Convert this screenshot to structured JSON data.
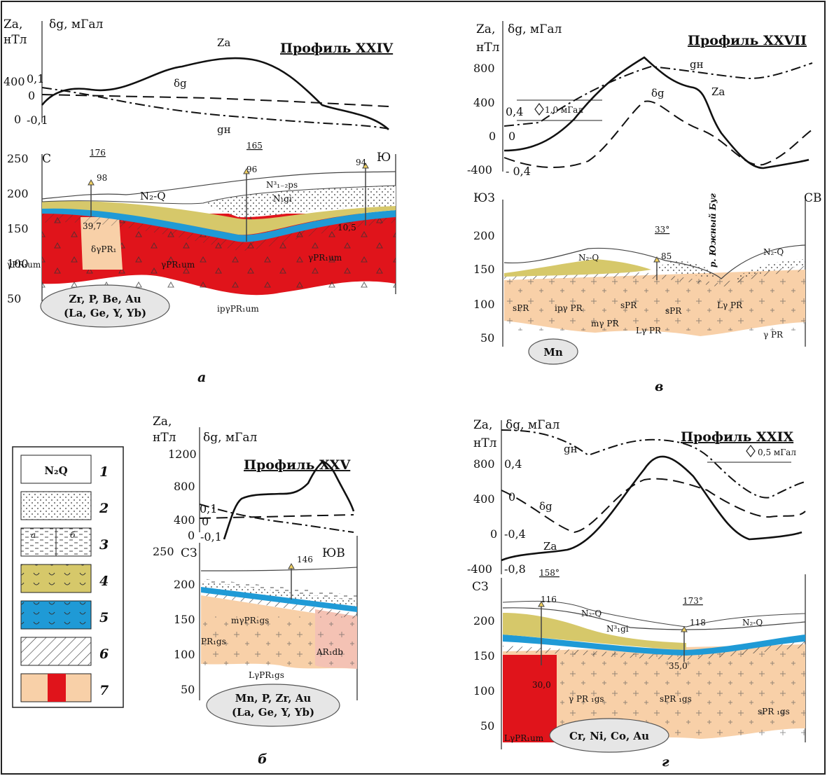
{
  "panels": [
    {
      "id": "a",
      "title": "Профиль XXIV",
      "za_label": [
        "Za,",
        "нТл"
      ],
      "dg_label": "δg, мГал",
      "za_ticks": [
        "400",
        "0"
      ],
      "dg_ticks": [
        "0,1",
        "0",
        "-0,1"
      ],
      "curves": [
        "Za",
        "δg",
        "gн"
      ],
      "depth_ticks": [
        "250",
        "200",
        "150",
        "100",
        "50"
      ],
      "dir_left": "С",
      "dir_right": "Ю",
      "well_marks": [
        "176",
        "165"
      ],
      "wells": [
        "98",
        "96",
        "94"
      ],
      "values": [
        "39,7",
        "10,5"
      ],
      "units": [
        "N₂-Q",
        "N³₁₋₂ps",
        "N₁gi",
        "δγPR₁",
        "γPR₁um",
        "γPR₁um",
        "γPR₁um",
        "ipγPR₁um"
      ],
      "elements": [
        "Zr, P, Be, Au",
        "(La, Ge, Y, Yb)"
      ],
      "letter": "а"
    },
    {
      "id": "b",
      "title": "Профиль XXV",
      "za_label": [
        "Za,",
        "нТл"
      ],
      "dg_label": "δg, мГал",
      "za_ticks": [
        "1200",
        "800",
        "400",
        "0"
      ],
      "dg_ticks": [
        "0,1",
        "0",
        "-0,1"
      ],
      "depth_ticks": [
        "250",
        "200",
        "150",
        "100",
        "50"
      ],
      "dir_left": "СЗ",
      "dir_right": "ЮВ",
      "wells": [
        "146"
      ],
      "units": [
        "mγPR₁gs",
        "PR₁gs",
        "AR₁db",
        "LγPR₁gs"
      ],
      "elements": [
        "Mn, P, Zr, Au",
        "(La, Ge, Y, Yb)"
      ],
      "letter": "б"
    },
    {
      "id": "v",
      "title": "Профиль XXVII",
      "za_label": [
        "Za,",
        "нТл"
      ],
      "dg_label": "δg, мГал",
      "za_ticks": [
        "800",
        "400",
        "0",
        "-400"
      ],
      "dg_ticks": [
        "0,4",
        "0",
        "- 0,4"
      ],
      "scale_bar": "1,0 мГал",
      "curves": [
        "gн",
        "δg",
        "Za"
      ],
      "depth_ticks": [
        "200",
        "150",
        "100",
        "50"
      ],
      "dir_left": "ЮЗ",
      "dir_right": "СВ",
      "well_marks": [
        "33°"
      ],
      "wells": [
        "85"
      ],
      "river": "р. Южный Буг",
      "units": [
        "N₂-Q",
        "N₂-Q",
        "sPR",
        "ipγ PR",
        "sPR",
        "Lγ PR",
        "sPR",
        "mγ PR",
        "Lγ PR",
        "γ PR"
      ],
      "elements": [
        "Mn"
      ],
      "letter": "в"
    },
    {
      "id": "g",
      "title": "Профиль XXIX",
      "za_label": [
        "Za,",
        "нТл"
      ],
      "dg_label": "δg, мГал",
      "za_ticks": [
        "800",
        "400",
        "0",
        "-400"
      ],
      "dg_ticks": [
        "0,4",
        "0",
        "-0,4",
        "-0,8"
      ],
      "scale_bar": "0,5 мГал",
      "curves": [
        "gн",
        "δg",
        "Za"
      ],
      "depth_ticks": [
        "200",
        "150",
        "100",
        "50"
      ],
      "dir_left": "СЗ",
      "well_marks": [
        "158°",
        "173°"
      ],
      "wells": [
        "116",
        "118"
      ],
      "values": [
        "30,0",
        "35,0"
      ],
      "units": [
        "N₂-Q",
        "N³₁gi",
        "N₂-Q",
        "γ PR ₁gs",
        "sPR ₁gs",
        "sPR ₁gs",
        "LγPR₁um"
      ],
      "elements": [
        "Cr, Ni, Co, Au"
      ],
      "letter": "г"
    }
  ],
  "legend": {
    "items": [
      "1",
      "2",
      "3",
      "4",
      "5",
      "6",
      "7"
    ],
    "box_text": "N₂Q",
    "sub_a": "а",
    "sub_b": "б",
    "colors": [
      "#ffffff",
      "#ffffff",
      "#ffffff",
      "#d6c86a",
      "#1f9ad6",
      "#ffffff",
      "#f8d0a8",
      "#e0141b"
    ]
  }
}
